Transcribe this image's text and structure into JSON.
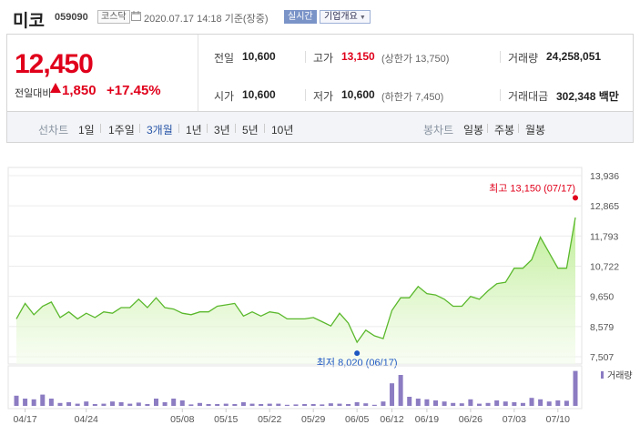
{
  "header": {
    "name": "미코",
    "code": "059090",
    "market": "코스닥",
    "date": "2020.07.17 14:18 기준(장중)",
    "realtime": "실시간",
    "company_info": "기업개요"
  },
  "price": {
    "current": "12,450",
    "change_label": "전일대비",
    "change": "1,850",
    "change_pct": "+17.45%"
  },
  "stats": {
    "prev_label": "전일",
    "prev": "10,600",
    "open_label": "시가",
    "open": "10,600",
    "high_label": "고가",
    "high": "13,150",
    "upper_limit": "(상한가 13,750)",
    "low_label": "저가",
    "low": "10,600",
    "lower_limit": "(하한가 7,450)",
    "volume_label": "거래량",
    "volume": "24,258,051",
    "amount_label": "거래대금",
    "amount": "302,348 백만"
  },
  "periods": {
    "line_label": "선차트",
    "line_options": [
      "1일",
      "1주일",
      "3개월",
      "1년",
      "3년",
      "5년",
      "10년"
    ],
    "selected": "3개월",
    "candle_label": "봉차트",
    "candle_options": [
      "일봉",
      "주봉",
      "월봉"
    ]
  },
  "colors": {
    "up": "#e0001b",
    "line": "#5ab82c",
    "volume": "#8c7cc2",
    "low_marker": "#1e57c2",
    "selected_period": "#2a56a8"
  },
  "chart_data": {
    "type": "area",
    "y_ticks": [
      "13,936",
      "12,865",
      "11,793",
      "10,722",
      "9,650",
      "8,579",
      "7,507"
    ],
    "ylim": [
      7507,
      13936
    ],
    "x_ticks": [
      "04/17",
      "04/24",
      "05/08",
      "05/15",
      "05/22",
      "05/29",
      "06/05",
      "06/12",
      "06/19",
      "06/26",
      "07/03",
      "07/10"
    ],
    "high_annotation": "최고 13,150 (07/17)",
    "low_annotation": "최저 8,020 (06/17)",
    "volume_label": "거래량",
    "prices": [
      8850,
      9400,
      9000,
      9300,
      9450,
      8900,
      9100,
      8850,
      9050,
      8900,
      9100,
      9050,
      9250,
      9250,
      9550,
      9250,
      9600,
      9250,
      9200,
      9050,
      9000,
      9100,
      9100,
      9300,
      9350,
      9400,
      8950,
      9100,
      8950,
      9100,
      9050,
      8850,
      8850,
      8850,
      8900,
      8750,
      8600,
      9050,
      8700,
      8020,
      8450,
      8250,
      8150,
      9150,
      9600,
      9600,
      10000,
      9750,
      9700,
      9550,
      9300,
      9300,
      9650,
      9550,
      9850,
      10100,
      10150,
      10650,
      10650,
      10950,
      11750,
      11200,
      10650,
      10650,
      12450
    ],
    "volumes": [
      0.28,
      0.2,
      0.18,
      0.31,
      0.2,
      0.08,
      0.1,
      0.06,
      0.12,
      0.05,
      0.06,
      0.12,
      0.1,
      0.06,
      0.09,
      0.05,
      0.2,
      0.1,
      0.2,
      0.15,
      0.04,
      0.08,
      0.05,
      0.05,
      0.06,
      0.05,
      0.1,
      0.06,
      0.05,
      0.06,
      0.06,
      0.03,
      0.04,
      0.05,
      0.05,
      0.04,
      0.07,
      0.06,
      0.05,
      0.1,
      0.07,
      0.03,
      0.12,
      0.62,
      0.85,
      0.25,
      0.2,
      0.18,
      0.15,
      0.12,
      0.08,
      0.07,
      0.18,
      0.06,
      0.08,
      0.15,
      0.12,
      0.1,
      0.08,
      0.22,
      0.18,
      0.12,
      0.15,
      0.14,
      0.96
    ]
  }
}
